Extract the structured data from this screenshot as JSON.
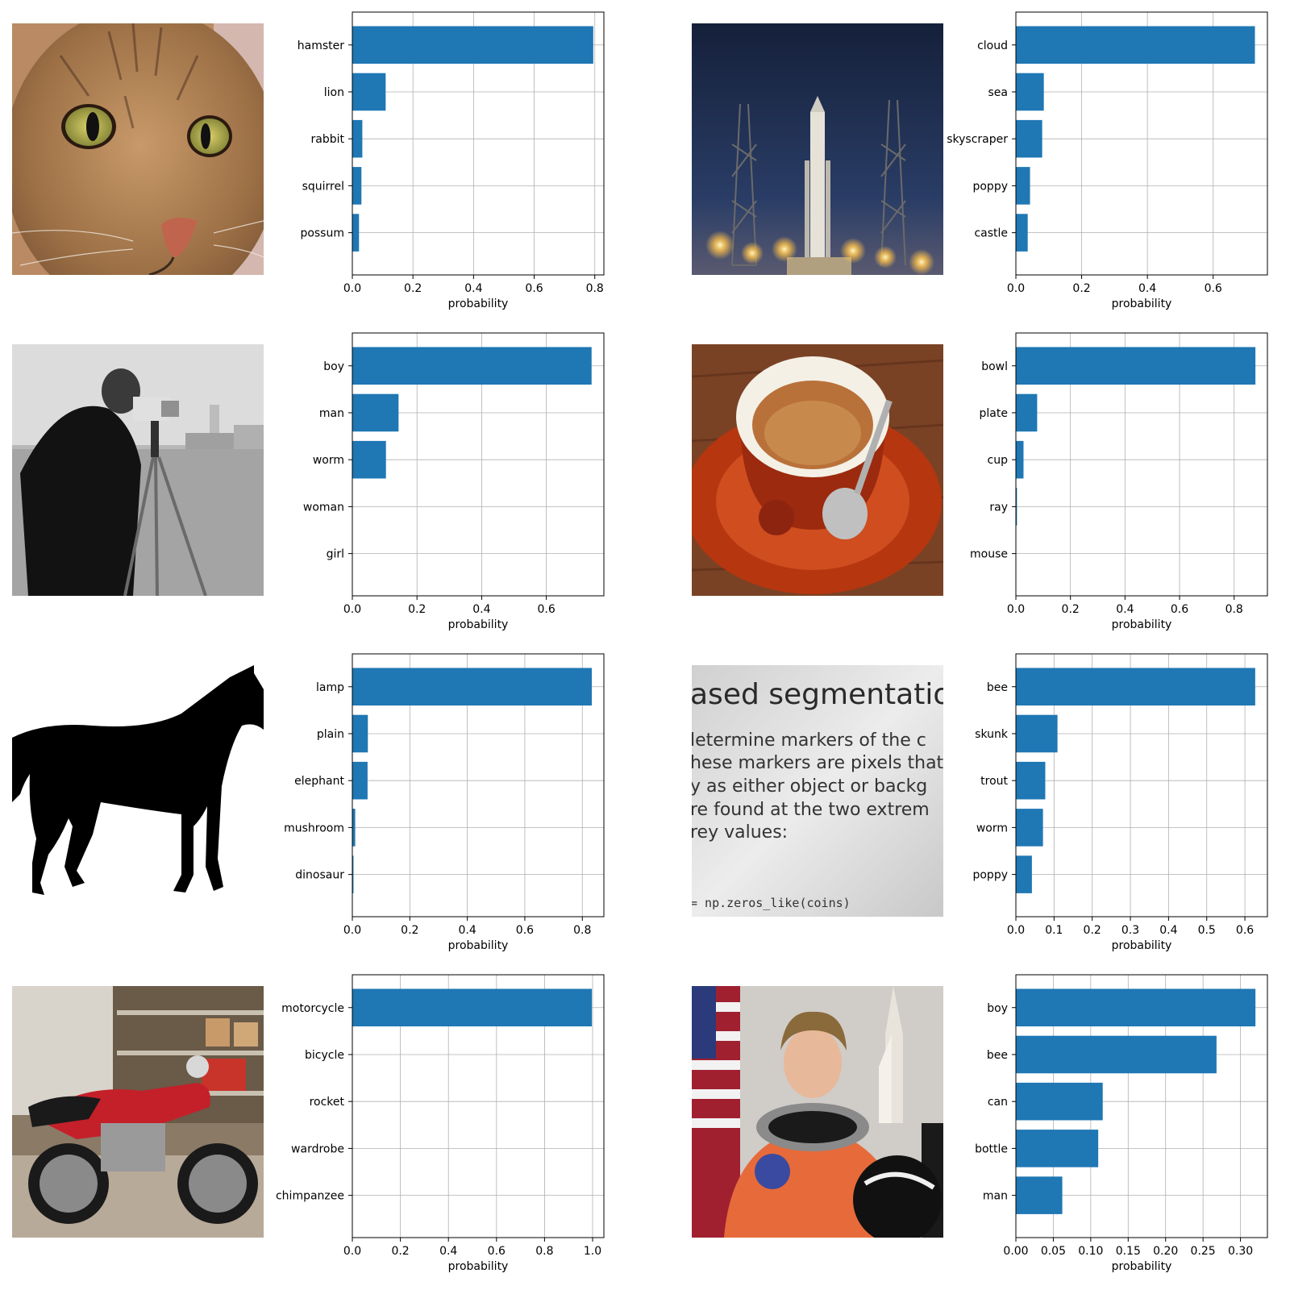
{
  "bar_color": "#1f77b4",
  "panels": [
    {
      "image": "cat-photo"
    },
    {
      "image": "rocket-launch-photo"
    },
    {
      "image": "cameraman-photo"
    },
    {
      "image": "coffee-cup-photo"
    },
    {
      "image": "horse-silhouette-image"
    },
    {
      "image": "text-page-photo",
      "text_lines": [
        "ased segmentation",
        "letermine  markers  of  the  c",
        "hese markers are pixels that",
        "y  as  either  object  or  backg",
        "re  found  at  the  two  extrem",
        "rey values:",
        "= np.zeros_like(coins)"
      ]
    },
    {
      "image": "motorcycle-photo"
    },
    {
      "image": "astronaut-photo"
    }
  ],
  "chart_data": [
    {
      "type": "bar",
      "orientation": "horizontal",
      "categories": [
        "hamster",
        "lion",
        "rabbit",
        "squirrel",
        "possum"
      ],
      "values": [
        0.795,
        0.11,
        0.033,
        0.03,
        0.022
      ],
      "xlabel": "probability",
      "xlim": [
        0,
        0.83
      ],
      "xticks": [
        0,
        0.2,
        0.4,
        0.6,
        0.8
      ],
      "xtick_labels": [
        "0.0",
        "0.2",
        "0.4",
        "0.6",
        "0.8"
      ],
      "grid": true
    },
    {
      "type": "bar",
      "orientation": "horizontal",
      "categories": [
        "cloud",
        "sea",
        "skyscraper",
        "poppy",
        "castle"
      ],
      "values": [
        0.727,
        0.085,
        0.08,
        0.043,
        0.036
      ],
      "xlabel": "probability",
      "xlim": [
        0,
        0.765
      ],
      "xticks": [
        0,
        0.2,
        0.4,
        0.6
      ],
      "xtick_labels": [
        "0.0",
        "0.2",
        "0.4",
        "0.6"
      ],
      "grid": true
    },
    {
      "type": "bar",
      "orientation": "horizontal",
      "categories": [
        "boy",
        "man",
        "worm",
        "woman",
        "girl"
      ],
      "values": [
        0.74,
        0.143,
        0.104,
        0.0,
        0.0
      ],
      "xlabel": "probability",
      "xlim": [
        0,
        0.778
      ],
      "xticks": [
        0,
        0.2,
        0.4,
        0.6
      ],
      "xtick_labels": [
        "0.0",
        "0.2",
        "0.4",
        "0.6"
      ],
      "grid": true
    },
    {
      "type": "bar",
      "orientation": "horizontal",
      "categories": [
        "bowl",
        "plate",
        "cup",
        "ray",
        "mouse"
      ],
      "values": [
        0.878,
        0.078,
        0.028,
        0.004,
        0.0
      ],
      "xlabel": "probability",
      "xlim": [
        0,
        0.922
      ],
      "xticks": [
        0,
        0.2,
        0.4,
        0.6,
        0.8
      ],
      "xtick_labels": [
        "0.0",
        "0.2",
        "0.4",
        "0.6",
        "0.8"
      ],
      "grid": true
    },
    {
      "type": "bar",
      "orientation": "horizontal",
      "categories": [
        "lamp",
        "plain",
        "elephant",
        "mushroom",
        "dinosaur"
      ],
      "values": [
        0.833,
        0.054,
        0.053,
        0.01,
        0.004
      ],
      "xlabel": "probability",
      "xlim": [
        0,
        0.875
      ],
      "xticks": [
        0,
        0.2,
        0.4,
        0.6,
        0.8
      ],
      "xtick_labels": [
        "0.0",
        "0.2",
        "0.4",
        "0.6",
        "0.8"
      ],
      "grid": true
    },
    {
      "type": "bar",
      "orientation": "horizontal",
      "categories": [
        "bee",
        "skunk",
        "trout",
        "worm",
        "poppy"
      ],
      "values": [
        0.627,
        0.109,
        0.077,
        0.071,
        0.042
      ],
      "xlabel": "probability",
      "xlim": [
        0,
        0.659
      ],
      "xticks": [
        0,
        0.1,
        0.2,
        0.3,
        0.4,
        0.5,
        0.6
      ],
      "xtick_labels": [
        "0.0",
        "0.1",
        "0.2",
        "0.3",
        "0.4",
        "0.5",
        "0.6"
      ],
      "grid": true
    },
    {
      "type": "bar",
      "orientation": "horizontal",
      "categories": [
        "motorcycle",
        "bicycle",
        "rocket",
        "wardrobe",
        "chimpanzee"
      ],
      "values": [
        0.997,
        0.0,
        0.0,
        0.0,
        0.0
      ],
      "xlabel": "probability",
      "xlim": [
        0,
        1.047
      ],
      "xticks": [
        0,
        0.2,
        0.4,
        0.6,
        0.8,
        1.0
      ],
      "xtick_labels": [
        "0.0",
        "0.2",
        "0.4",
        "0.6",
        "0.8",
        "1.0"
      ],
      "grid": true
    },
    {
      "type": "bar",
      "orientation": "horizontal",
      "categories": [
        "boy",
        "bee",
        "can",
        "bottle",
        "man"
      ],
      "values": [
        0.32,
        0.268,
        0.116,
        0.11,
        0.062
      ],
      "xlabel": "probability",
      "xlim": [
        0,
        0.336
      ],
      "xticks": [
        0,
        0.05,
        0.1,
        0.15,
        0.2,
        0.25,
        0.3
      ],
      "xtick_labels": [
        "0.00",
        "0.05",
        "0.10",
        "0.15",
        "0.20",
        "0.25",
        "0.30"
      ],
      "grid": true
    }
  ]
}
